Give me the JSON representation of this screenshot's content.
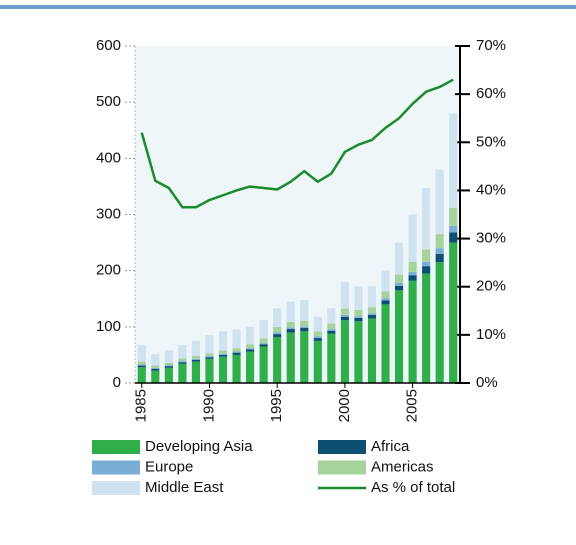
{
  "chart_data": {
    "type": "bar",
    "categories": [
      "1985",
      null,
      null,
      null,
      null,
      "1990",
      null,
      null,
      null,
      null,
      "1995",
      null,
      null,
      null,
      null,
      "2000",
      null,
      null,
      null,
      null,
      "2005",
      null,
      null,
      null
    ],
    "stacked": true,
    "series": [
      {
        "name": "Developing Asia",
        "color": "#2fae4a",
        "values": [
          28,
          22,
          27,
          34,
          38,
          43,
          47,
          50,
          56,
          65,
          82,
          90,
          92,
          75,
          88,
          112,
          110,
          115,
          140,
          165,
          182,
          195,
          215,
          250
        ]
      },
      {
        "name": "Africa",
        "color": "#0d4f73",
        "values": [
          3,
          3,
          3,
          3,
          3,
          3,
          3,
          4,
          4,
          4,
          5,
          6,
          6,
          5,
          5,
          6,
          6,
          6,
          7,
          8,
          10,
          13,
          15,
          18
        ]
      },
      {
        "name": "Europe",
        "color": "#7aaed6",
        "values": [
          2,
          2,
          2,
          2,
          2,
          2,
          2,
          2,
          2,
          2,
          3,
          3,
          3,
          3,
          3,
          3,
          3,
          3,
          4,
          5,
          6,
          8,
          10,
          12
        ]
      },
      {
        "name": "Americas",
        "color": "#a6d39c",
        "values": [
          5,
          4,
          4,
          5,
          5,
          5,
          6,
          6,
          7,
          8,
          10,
          10,
          10,
          9,
          10,
          12,
          11,
          11,
          12,
          15,
          18,
          22,
          25,
          32
        ]
      },
      {
        "name": "Middle East",
        "color": "#cfe2f0",
        "values": [
          30,
          21,
          22,
          24,
          27,
          32,
          34,
          33,
          31,
          33,
          33,
          36,
          37,
          26,
          27,
          47,
          42,
          37,
          37,
          57,
          84,
          109,
          115,
          168
        ]
      },
      {
        "name": "As % of total",
        "color": "#1a8c2a",
        "type": "line",
        "axis": "y2",
        "values": [
          52,
          42,
          40.5,
          36.5,
          36.5,
          38,
          39,
          40,
          40.8,
          40.5,
          40.2,
          41.8,
          44,
          41.8,
          43.5,
          48,
          49.5,
          50.5,
          53,
          55,
          58,
          60.5,
          61.5,
          63
        ]
      }
    ],
    "ylim": [
      0,
      600
    ],
    "yticks": [
      0,
      100,
      200,
      300,
      400,
      500,
      600
    ],
    "y2lim": [
      0,
      70
    ],
    "y2ticks": [
      {
        "value": 0,
        "label": "0%"
      },
      {
        "value": 10,
        "label": "10%"
      },
      {
        "value": 20,
        "label": "20%"
      },
      {
        "value": 30,
        "label": "30%"
      },
      {
        "value": 40,
        "label": "40%"
      },
      {
        "value": 50,
        "label": "50%"
      },
      {
        "value": 60,
        "label": "60%"
      },
      {
        "value": 70,
        "label": "70%"
      }
    ],
    "legend": "bottom"
  }
}
